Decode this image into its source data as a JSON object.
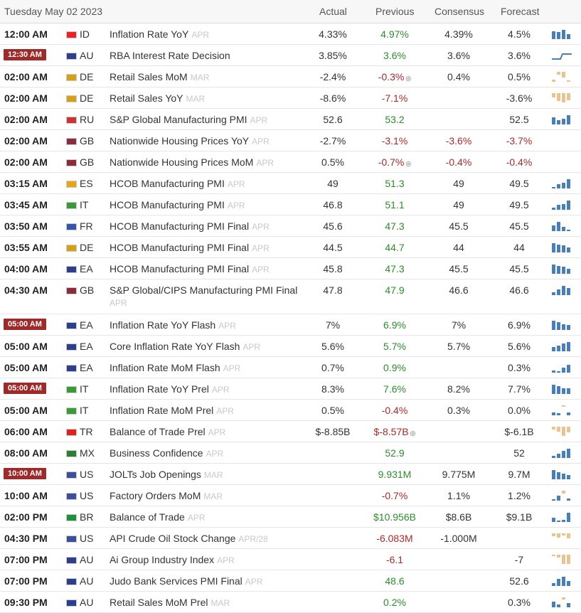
{
  "header": {
    "date": "Tuesday May 02 2023",
    "cols": [
      "Actual",
      "Previous",
      "Consensus",
      "Forecast"
    ]
  },
  "rows": [
    {
      "time": "12:00 AM",
      "badge": false,
      "cc": "ID",
      "flag": "#e22",
      "ev": "Inflation Rate YoY",
      "ref": "APR",
      "actual": "4.33%",
      "prev": "4.97%",
      "pc": "green",
      "cons": "4.39%",
      "fore": "4.5%",
      "spark": [
        0.8,
        0.7,
        0.9,
        0.5
      ],
      "sc": "#4a7fb5"
    },
    {
      "time": "12:30 AM",
      "badge": true,
      "cc": "AU",
      "flag": "#2b3f8c",
      "ev": "RBA Interest Rate Decision",
      "ref": "",
      "actual": "3.85%",
      "prev": "3.6%",
      "pc": "green",
      "cons": "3.6%",
      "fore": "3.6%",
      "spark": "line",
      "sc": "#4a7fb5"
    },
    {
      "time": "02:00 AM",
      "badge": false,
      "cc": "DE",
      "flag": "#d4a017",
      "ev": "Retail Sales MoM",
      "ref": "MAR",
      "actual": "-2.4%",
      "prev": "-0.3%",
      "pc": "red",
      "rev": true,
      "cons": "0.4%",
      "fore": "0.5%",
      "spark": [
        0.2,
        -0.3,
        -0.6,
        0.1
      ],
      "sc": "#e8c590"
    },
    {
      "time": "02:00 AM",
      "badge": false,
      "cc": "DE",
      "flag": "#d4a017",
      "ev": "Retail Sales YoY",
      "ref": "MAR",
      "actual": "-8.6%",
      "prev": "-7.1%",
      "pc": "red",
      "cons": "",
      "fore": "-3.6%",
      "spark": [
        -0.4,
        -0.8,
        -0.9,
        -0.7
      ],
      "sc": "#e8c590"
    },
    {
      "time": "02:00 AM",
      "badge": false,
      "cc": "RU",
      "flag": "#c33",
      "ev": "S&P Global Manufacturing PMI",
      "ref": "APR",
      "actual": "52.6",
      "prev": "53.2",
      "pc": "green",
      "cons": "",
      "fore": "52.5",
      "spark": [
        0.7,
        0.4,
        0.6,
        0.9
      ],
      "sc": "#4a7fb5"
    },
    {
      "time": "02:00 AM",
      "badge": false,
      "cc": "GB",
      "flag": "#8b2c3b",
      "ev": "Nationwide Housing Prices YoY",
      "ref": "APR",
      "actual": "-2.7%",
      "prev": "-3.1%",
      "pc": "red",
      "cons": "-3.6%",
      "ccl": "red",
      "fore": "-3.7%",
      "fcl": "red",
      "spark": [],
      "sc": "#4a7fb5"
    },
    {
      "time": "02:00 AM",
      "badge": false,
      "cc": "GB",
      "flag": "#8b2c3b",
      "ev": "Nationwide Housing Prices MoM",
      "ref": "APR",
      "actual": "0.5%",
      "prev": "-0.7%",
      "pc": "red",
      "rev": true,
      "cons": "-0.4%",
      "ccl": "red",
      "fore": "-0.4%",
      "fcl": "red",
      "spark": [],
      "sc": "#4a7fb5"
    },
    {
      "time": "03:15 AM",
      "badge": false,
      "cc": "ES",
      "flag": "#e8a317",
      "ev": "HCOB Manufacturing PMI",
      "ref": "APR",
      "actual": "49",
      "prev": "51.3",
      "pc": "green",
      "cons": "49",
      "fore": "49.5",
      "spark": [
        0.1,
        0.4,
        0.6,
        0.9
      ],
      "sc": "#4a7fb5"
    },
    {
      "time": "03:45 AM",
      "badge": false,
      "cc": "IT",
      "flag": "#3a9a3a",
      "ev": "HCOB Manufacturing PMI",
      "ref": "APR",
      "actual": "46.8",
      "prev": "51.1",
      "pc": "green",
      "cons": "49",
      "fore": "49.5",
      "spark": [
        0.2,
        0.5,
        0.6,
        0.9
      ],
      "sc": "#4a7fb5"
    },
    {
      "time": "03:50 AM",
      "badge": false,
      "cc": "FR",
      "flag": "#3355aa",
      "ev": "HCOB Manufacturing PMI Final",
      "ref": "APR",
      "actual": "45.6",
      "prev": "47.3",
      "pc": "green",
      "cons": "45.5",
      "fore": "45.5",
      "spark": [
        0.6,
        0.9,
        0.4,
        0.1
      ],
      "sc": "#4a7fb5"
    },
    {
      "time": "03:55 AM",
      "badge": false,
      "cc": "DE",
      "flag": "#d4a017",
      "ev": "HCOB Manufacturing PMI Final",
      "ref": "APR",
      "actual": "44.5",
      "prev": "44.7",
      "pc": "green",
      "cons": "44",
      "fore": "44",
      "spark": [
        0.9,
        0.8,
        0.7,
        0.5
      ],
      "sc": "#4a7fb5"
    },
    {
      "time": "04:00 AM",
      "badge": false,
      "cc": "EA",
      "flag": "#2b3f8c",
      "ev": "HCOB Manufacturing PMI Final",
      "ref": "APR",
      "actual": "45.8",
      "prev": "47.3",
      "pc": "green",
      "cons": "45.5",
      "fore": "45.5",
      "spark": [
        0.9,
        0.8,
        0.7,
        0.5
      ],
      "sc": "#4a7fb5"
    },
    {
      "time": "04:30 AM",
      "badge": false,
      "cc": "GB",
      "flag": "#8b2c3b",
      "ev": "S&P Global/CIPS Manufacturing PMI Final",
      "ref": "APR",
      "tall": true,
      "actual": "47.8",
      "prev": "47.9",
      "pc": "green",
      "cons": "46.6",
      "fore": "46.6",
      "spark": [
        0.3,
        0.6,
        0.9,
        0.7
      ],
      "sc": "#4a7fb5"
    },
    {
      "time": "05:00 AM",
      "badge": true,
      "cc": "EA",
      "flag": "#2b3f8c",
      "ev": "Inflation Rate YoY Flash",
      "ref": "APR",
      "actual": "7%",
      "prev": "6.9%",
      "pc": "green",
      "cons": "7%",
      "fore": "6.9%",
      "spark": [
        0.9,
        0.8,
        0.6,
        0.5
      ],
      "sc": "#4a7fb5"
    },
    {
      "time": "05:00 AM",
      "badge": false,
      "cc": "EA",
      "flag": "#2b3f8c",
      "ev": "Core Inflation Rate YoY Flash",
      "ref": "APR",
      "actual": "5.6%",
      "prev": "5.7%",
      "pc": "green",
      "cons": "5.7%",
      "fore": "5.6%",
      "spark": [
        0.4,
        0.6,
        0.8,
        0.9
      ],
      "sc": "#4a7fb5"
    },
    {
      "time": "05:00 AM",
      "badge": false,
      "cc": "EA",
      "flag": "#2b3f8c",
      "ev": "Inflation Rate MoM Flash",
      "ref": "APR",
      "actual": "0.7%",
      "prev": "0.9%",
      "pc": "green",
      "cons": "",
      "fore": "0.3%",
      "spark": [
        0.2,
        0.1,
        0.5,
        0.8
      ],
      "sc": "#4a7fb5"
    },
    {
      "time": "05:00 AM",
      "badge": true,
      "cc": "IT",
      "flag": "#3a9a3a",
      "ev": "Inflation Rate YoY Prel",
      "ref": "APR",
      "actual": "8.3%",
      "prev": "7.6%",
      "pc": "green",
      "cons": "8.2%",
      "fore": "7.7%",
      "spark": [
        0.9,
        0.8,
        0.6,
        0.6
      ],
      "sc": "#4a7fb5"
    },
    {
      "time": "05:00 AM",
      "badge": false,
      "cc": "IT",
      "flag": "#3a9a3a",
      "ev": "Inflation Rate MoM Prel",
      "ref": "APR",
      "actual": "0.5%",
      "prev": "-0.4%",
      "pc": "red",
      "cons": "0.3%",
      "fore": "0.0%",
      "spark": [
        0.3,
        0.2,
        -0.1,
        0.3
      ],
      "sc": "#4a7fb5"
    },
    {
      "time": "06:00 AM",
      "badge": false,
      "cc": "TR",
      "flag": "#d22",
      "ev": "Balance of Trade Prel",
      "ref": "APR",
      "actual": "$-8.85B",
      "prev": "$-8.57B",
      "pc": "red",
      "rev": true,
      "cons": "",
      "fore": "$-6.1B",
      "spark": [
        -0.3,
        -0.5,
        -0.9,
        -0.6
      ],
      "sc": "#e8c590"
    },
    {
      "time": "08:00 AM",
      "badge": false,
      "cc": "MX",
      "flag": "#2e7d32",
      "ev": "Business Confidence",
      "ref": "APR",
      "actual": "",
      "prev": "52.9",
      "pc": "green",
      "cons": "",
      "fore": "52",
      "spark": [
        0.2,
        0.4,
        0.7,
        0.9
      ],
      "sc": "#4a7fb5"
    },
    {
      "time": "10:00 AM",
      "badge": true,
      "cc": "US",
      "flag": "#3b4f9a",
      "ev": "JOLTs Job Openings",
      "ref": "MAR",
      "actual": "",
      "prev": "9.931M",
      "pc": "green",
      "cons": "9.775M",
      "fore": "9.7M",
      "spark": [
        0.9,
        0.7,
        0.6,
        0.4
      ],
      "sc": "#4a7fb5"
    },
    {
      "time": "10:00 AM",
      "badge": false,
      "cc": "US",
      "flag": "#3b4f9a",
      "ev": "Factory Orders MoM",
      "ref": "MAR",
      "actual": "",
      "prev": "-0.7%",
      "pc": "red",
      "cons": "1.1%",
      "fore": "1.2%",
      "spark": [
        0.1,
        0.5,
        -0.3,
        0.2
      ],
      "sc": "#4a7fb5"
    },
    {
      "time": "02:00 PM",
      "badge": false,
      "cc": "BR",
      "flag": "#1e8f3a",
      "ev": "Balance of Trade",
      "ref": "APR",
      "actual": "",
      "prev": "$10.956B",
      "pc": "green",
      "cons": "$8.6B",
      "fore": "$9.1B",
      "spark": [
        0.4,
        0.1,
        0.2,
        0.9
      ],
      "sc": "#4a7fb5"
    },
    {
      "time": "04:30 PM",
      "badge": false,
      "cc": "US",
      "flag": "#3b4f9a",
      "ev": "API Crude Oil Stock Change",
      "ref": "APR/28",
      "actual": "",
      "prev": "-6.083M",
      "pc": "red",
      "cons": "-1.000M",
      "fore": "",
      "spark": [
        -0.3,
        -0.4,
        -0.2,
        -0.5
      ],
      "sc": "#e8c590"
    },
    {
      "time": "07:00 PM",
      "badge": false,
      "cc": "AU",
      "flag": "#2b3f8c",
      "ev": "Ai Group Industry Index",
      "ref": "APR",
      "actual": "",
      "prev": "-6.1",
      "pc": "red",
      "cons": "",
      "fore": "-7",
      "spark": [
        -0.1,
        -0.3,
        -0.9,
        -0.9
      ],
      "sc": "#e8c590"
    },
    {
      "time": "07:00 PM",
      "badge": false,
      "cc": "AU",
      "flag": "#2b3f8c",
      "ev": "Judo Bank Services PMI Final",
      "ref": "APR",
      "actual": "",
      "prev": "48.6",
      "pc": "green",
      "cons": "",
      "fore": "52.6",
      "spark": [
        0.3,
        0.7,
        0.9,
        0.5
      ],
      "sc": "#4a7fb5"
    },
    {
      "time": "09:30 PM",
      "badge": false,
      "cc": "AU",
      "flag": "#2b3f8c",
      "ev": "Retail Sales MoM Prel",
      "ref": "MAR",
      "actual": "",
      "prev": "0.2%",
      "pc": "green",
      "cons": "",
      "fore": "0.3%",
      "spark": [
        0.6,
        0.3,
        -0.2,
        0.4
      ],
      "sc": "#4a7fb5"
    }
  ]
}
